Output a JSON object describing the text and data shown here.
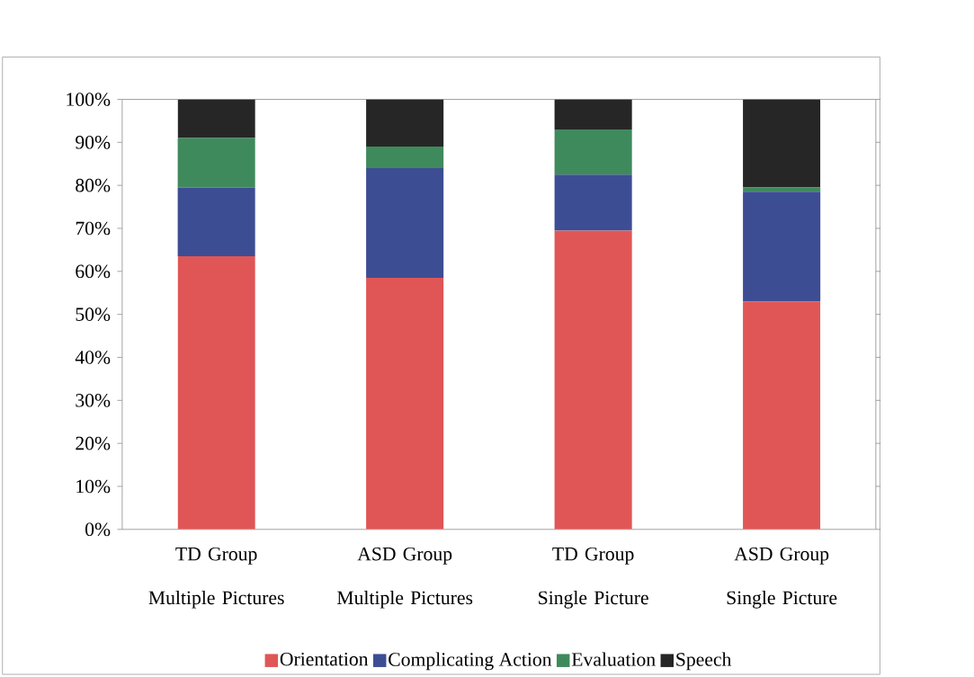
{
  "chart_data": {
    "type": "bar",
    "stacked": true,
    "categories": [
      "TD Group Multiple Pictures",
      "ASD Group Multiple Pictures",
      "TD Group Single Picture",
      "ASD Group Single Picture"
    ],
    "series": [
      {
        "name": "Orientation",
        "color": "#e05656",
        "values": [
          63.5,
          58.5,
          69.5,
          53
        ]
      },
      {
        "name": "Complicating Action",
        "color": "#3d4d94",
        "values": [
          16,
          25.5,
          13,
          25.5
        ]
      },
      {
        "name": "Evaluation",
        "color": "#3f8a5c",
        "values": [
          11.5,
          5,
          10.5,
          1
        ]
      },
      {
        "name": "Speech",
        "color": "#262626",
        "values": [
          9,
          11,
          7,
          20.5
        ]
      }
    ],
    "ylim": [
      0,
      100
    ],
    "yticks": [
      {
        "value": 0,
        "label": "0%"
      },
      {
        "value": 10,
        "label": "10%"
      },
      {
        "value": 20,
        "label": "20%"
      },
      {
        "value": 30,
        "label": "30%"
      },
      {
        "value": 40,
        "label": "40%"
      },
      {
        "value": 50,
        "label": "50%"
      },
      {
        "value": 60,
        "label": "60%"
      },
      {
        "value": 70,
        "label": "70%"
      },
      {
        "value": 80,
        "label": "80%"
      },
      {
        "value": 90,
        "label": "90%"
      },
      {
        "value": 100,
        "label": "100%"
      }
    ],
    "legend": "bottom",
    "grid": false
  }
}
